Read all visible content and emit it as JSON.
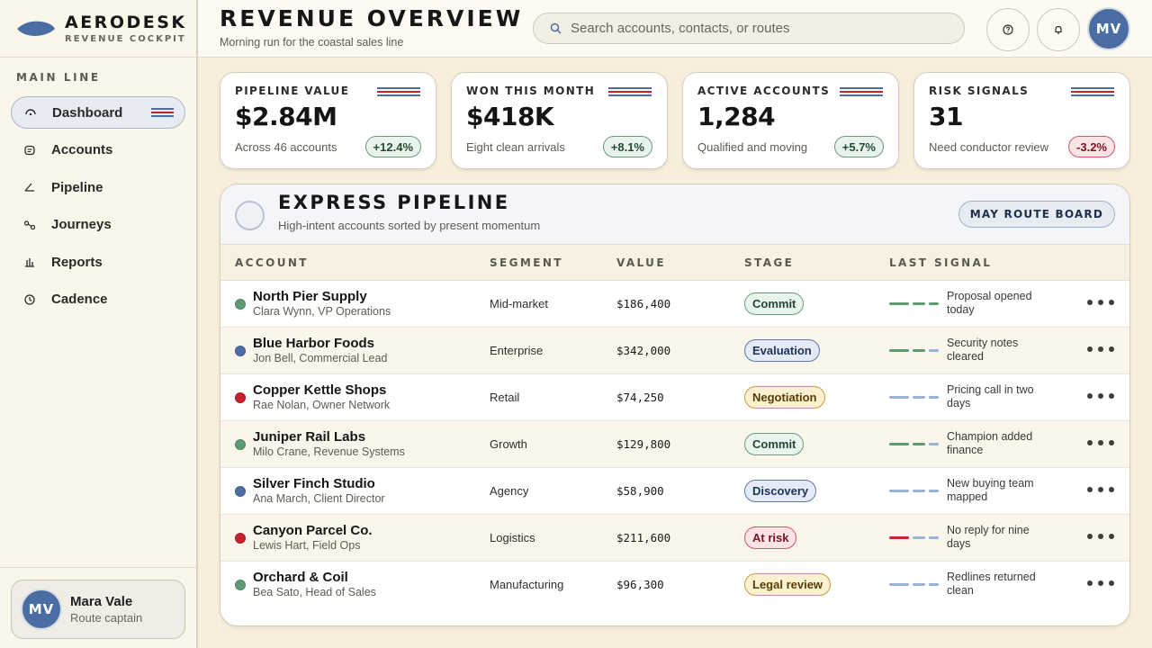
{
  "brand": {
    "name": "AERODESK",
    "subtitle": "REVENUE COCKPIT",
    "accent": "#4a6ea3"
  },
  "sidebar": {
    "section_title": "MAIN LINE",
    "items": [
      {
        "label": "Dashboard",
        "icon": "gauge-icon",
        "active": true
      },
      {
        "label": "Accounts",
        "icon": "chat-box-icon",
        "active": false
      },
      {
        "label": "Pipeline",
        "icon": "angle-icon",
        "active": false
      },
      {
        "label": "Journeys",
        "icon": "route-icon",
        "active": false
      },
      {
        "label": "Reports",
        "icon": "bar-chart-icon",
        "active": false
      },
      {
        "label": "Cadence",
        "icon": "clock-icon",
        "active": false
      }
    ],
    "profile": {
      "initials": "MV",
      "name": "Mara Vale",
      "role": "Route captain"
    }
  },
  "header": {
    "title": "REVENUE OVERVIEW",
    "subtitle": "Morning run for the coastal sales line",
    "search_placeholder": "Search accounts, contacts, or routes",
    "avatar_initials": "MV"
  },
  "kpis": [
    {
      "label": "PIPELINE VALUE",
      "value": "$2.84M",
      "note": "Across 46 accounts",
      "delta": "+12.4%",
      "trend": "up"
    },
    {
      "label": "WON THIS MONTH",
      "value": "$418K",
      "note": "Eight clean arrivals",
      "delta": "+8.1%",
      "trend": "up"
    },
    {
      "label": "ACTIVE ACCOUNTS",
      "value": "1,284",
      "note": "Qualified and moving",
      "delta": "+5.7%",
      "trend": "up"
    },
    {
      "label": "RISK SIGNALS",
      "value": "31",
      "note": "Need conductor review",
      "delta": "-3.2%",
      "trend": "down"
    }
  ],
  "pipeline": {
    "title": "EXPRESS PIPELINE",
    "subtitle": "High-intent accounts sorted by present momentum",
    "action_label": "MAY ROUTE BOARD",
    "columns": [
      "ACCOUNT",
      "SEGMENT",
      "VALUE",
      "STAGE",
      "LAST SIGNAL"
    ],
    "rows": [
      {
        "account": "North Pier Supply",
        "contact": "Clara Wynn, VP Operations",
        "segment": "Mid-market",
        "value": "$186,400",
        "stage": "Commit",
        "stage_tone": "green",
        "dot": "#5e9a72",
        "signal": "Proposal opened today",
        "signal_level": 3
      },
      {
        "account": "Blue Harbor Foods",
        "contact": "Jon Bell, Commercial Lead",
        "segment": "Enterprise",
        "value": "$342,000",
        "stage": "Evaluation",
        "stage_tone": "blue",
        "dot": "#4a6ea3",
        "signal": "Security notes cleared",
        "signal_level": 2
      },
      {
        "account": "Copper Kettle Shops",
        "contact": "Rae Nolan, Owner Network",
        "segment": "Retail",
        "value": "$74,250",
        "stage": "Negotiation",
        "stage_tone": "gold",
        "dot": "#c8202e",
        "signal": "Pricing call in two days",
        "signal_level": 0
      },
      {
        "account": "Juniper Rail Labs",
        "contact": "Milo Crane, Revenue Systems",
        "segment": "Growth",
        "value": "$129,800",
        "stage": "Commit",
        "stage_tone": "green",
        "dot": "#5e9a72",
        "signal": "Champion added finance",
        "signal_level": 2
      },
      {
        "account": "Silver Finch Studio",
        "contact": "Ana March, Client Director",
        "segment": "Agency",
        "value": "$58,900",
        "stage": "Discovery",
        "stage_tone": "blue",
        "dot": "#4a6ea3",
        "signal": "New buying team mapped",
        "signal_level": 0
      },
      {
        "account": "Canyon Parcel Co.",
        "contact": "Lewis Hart, Field Ops",
        "segment": "Logistics",
        "value": "$211,600",
        "stage": "At risk",
        "stage_tone": "red",
        "dot": "#c8202e",
        "signal": "No reply for nine days",
        "signal_level": -1
      },
      {
        "account": "Orchard & Coil",
        "contact": "Bea Sato, Head of Sales",
        "segment": "Manufacturing",
        "value": "$96,300",
        "stage": "Legal review",
        "stage_tone": "gold",
        "dot": "#5e9a72",
        "signal": "Redlines returned clean",
        "signal_level": 0
      }
    ]
  },
  "colors": {
    "signal_green": "#5e9a72",
    "signal_blue": "#9ab2d3",
    "signal_red": "#c8202e",
    "flag_blue": "#4a6ea3",
    "flag_red": "#c8202e"
  }
}
